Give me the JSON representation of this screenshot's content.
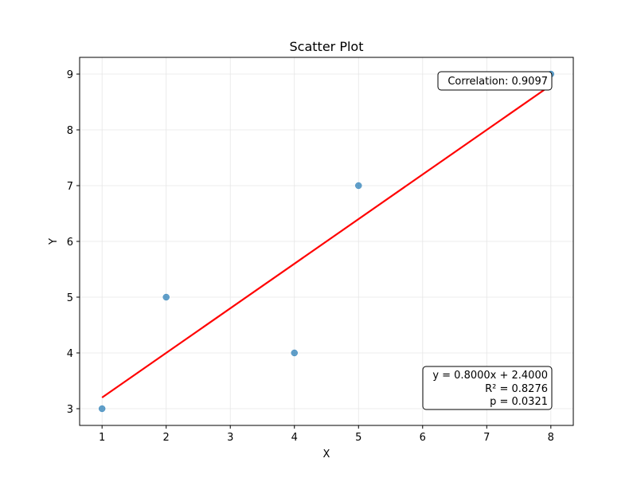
{
  "chart_data": {
    "type": "scatter",
    "title": "Scatter Plot",
    "xlabel": "X",
    "ylabel": "Y",
    "xlim": [
      0.65,
      8.35
    ],
    "ylim": [
      2.7,
      9.3
    ],
    "xticks": [
      1,
      2,
      3,
      4,
      5,
      6,
      7,
      8
    ],
    "yticks": [
      3,
      4,
      5,
      6,
      7,
      8,
      9
    ],
    "grid": true,
    "points": [
      {
        "x": 1,
        "y": 3
      },
      {
        "x": 2,
        "y": 5
      },
      {
        "x": 4,
        "y": 4
      },
      {
        "x": 5,
        "y": 7
      },
      {
        "x": 8,
        "y": 9
      }
    ],
    "regression": {
      "slope": 0.8,
      "intercept": 2.4,
      "x_range": [
        1,
        8
      ]
    },
    "annotations": {
      "correlation": "Correlation: 0.9097",
      "equation": "y = 0.8000x + 2.4000",
      "r_squared": "R² = 0.8276",
      "p_value": "p = 0.0321"
    },
    "colors": {
      "point": "#1f77b4",
      "regression_line": "#ff0000",
      "grid": "#e6e6e6",
      "axis": "#000000"
    }
  }
}
